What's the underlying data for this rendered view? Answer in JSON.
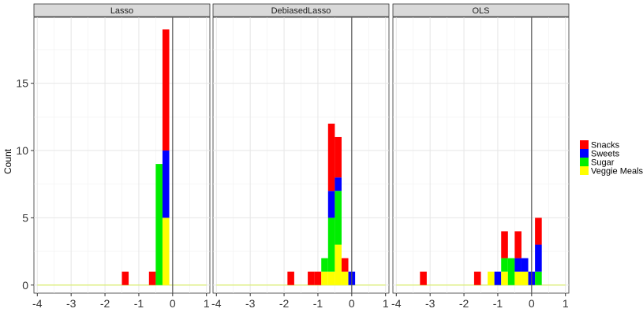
{
  "chart_data": {
    "type": "bar",
    "subtype": "stacked-histogram-faceted",
    "ylabel": "Count",
    "xlabel": "",
    "xlim": [
      -4.1,
      1.1
    ],
    "ylim": [
      -0.6,
      19.9
    ],
    "x_ticks": [
      -4,
      -3,
      -2,
      -1,
      0,
      1
    ],
    "y_ticks": [
      0,
      5,
      10,
      15
    ],
    "bin_width": 0.2,
    "vline_x": 0,
    "legend_position": "right",
    "series": [
      {
        "name": "Snacks",
        "color": "#ff0000"
      },
      {
        "name": "Sweets",
        "color": "#0000ff"
      },
      {
        "name": "Sugar",
        "color": "#00ee00"
      },
      {
        "name": "Veggie Meals",
        "color": "#ffff00"
      }
    ],
    "facets": [
      {
        "title": "Lasso",
        "bins": [
          {
            "x": -1.4,
            "Snacks": 1,
            "Sweets": 0,
            "Sugar": 0,
            "Veggie Meals": 0
          },
          {
            "x": -0.6,
            "Snacks": 1,
            "Sweets": 0,
            "Sugar": 0,
            "Veggie Meals": 0
          },
          {
            "x": -0.4,
            "Snacks": 0,
            "Sweets": 0,
            "Sugar": 9,
            "Veggie Meals": 0
          },
          {
            "x": -0.2,
            "Snacks": 9,
            "Sweets": 5,
            "Sugar": 0,
            "Veggie Meals": 5
          }
        ]
      },
      {
        "title": "DebiasedLasso",
        "bins": [
          {
            "x": -1.8,
            "Snacks": 1,
            "Sweets": 0,
            "Sugar": 0,
            "Veggie Meals": 0
          },
          {
            "x": -1.2,
            "Snacks": 1,
            "Sweets": 0,
            "Sugar": 0,
            "Veggie Meals": 0
          },
          {
            "x": -1.0,
            "Snacks": 1,
            "Sweets": 0,
            "Sugar": 0,
            "Veggie Meals": 0
          },
          {
            "x": -0.8,
            "Snacks": 0,
            "Sweets": 0,
            "Sugar": 1,
            "Veggie Meals": 1
          },
          {
            "x": -0.6,
            "Snacks": 5,
            "Sweets": 2,
            "Sugar": 4,
            "Veggie Meals": 1
          },
          {
            "x": -0.4,
            "Snacks": 3,
            "Sweets": 1,
            "Sugar": 4,
            "Veggie Meals": 3
          },
          {
            "x": -0.2,
            "Snacks": 1,
            "Sweets": 0,
            "Sugar": 0,
            "Veggie Meals": 1
          },
          {
            "x": 0.0,
            "Snacks": 0,
            "Sweets": 1,
            "Sugar": 0,
            "Veggie Meals": 0
          }
        ]
      },
      {
        "title": "OLS",
        "bins": [
          {
            "x": -3.2,
            "Snacks": 1,
            "Sweets": 0,
            "Sugar": 0,
            "Veggie Meals": 0
          },
          {
            "x": -1.6,
            "Snacks": 1,
            "Sweets": 0,
            "Sugar": 0,
            "Veggie Meals": 0
          },
          {
            "x": -1.2,
            "Snacks": 0,
            "Sweets": 0,
            "Sugar": 0,
            "Veggie Meals": 1
          },
          {
            "x": -1.0,
            "Snacks": 0,
            "Sweets": 1,
            "Sugar": 0,
            "Veggie Meals": 0
          },
          {
            "x": -0.8,
            "Snacks": 2,
            "Sweets": 0,
            "Sugar": 1,
            "Veggie Meals": 1
          },
          {
            "x": -0.6,
            "Snacks": 0,
            "Sweets": 0,
            "Sugar": 2,
            "Veggie Meals": 0
          },
          {
            "x": -0.4,
            "Snacks": 2,
            "Sweets": 1,
            "Sugar": 0,
            "Veggie Meals": 1
          },
          {
            "x": -0.2,
            "Snacks": 0,
            "Sweets": 1,
            "Sugar": 0,
            "Veggie Meals": 1
          },
          {
            "x": 0.0,
            "Snacks": 0,
            "Sweets": 1,
            "Sugar": 0,
            "Veggie Meals": 0
          },
          {
            "x": 0.2,
            "Snacks": 2,
            "Sweets": 2,
            "Sugar": 1,
            "Veggie Meals": 0
          }
        ]
      }
    ]
  }
}
